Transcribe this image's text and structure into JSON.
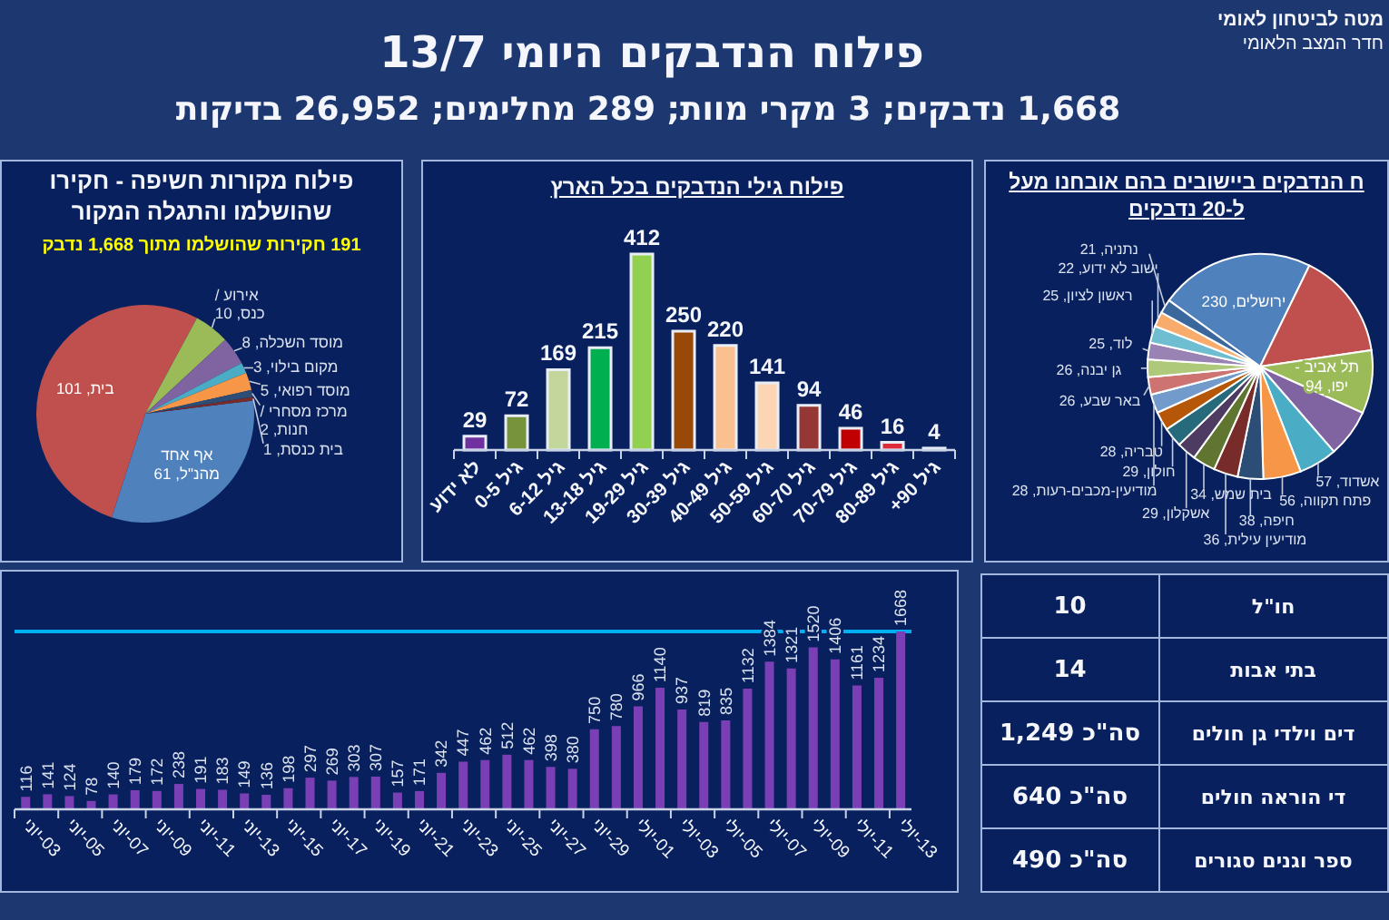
{
  "chart_data": [
    {
      "type": "other",
      "title": "פילוח הנדבקים היומי 13/7",
      "subtitle": "1,668 נדבקים; 3 מקרי מוות; 289 מחלימים; 26,952 בדיקות",
      "annotations": [
        "מטה לביטחון לאומי",
        "חדר המצב הלאומי"
      ]
    },
    {
      "type": "pie",
      "title": "ח הנדבקים ביישובים בהם אובחנו מעל\nל-20 נדבקים",
      "categories": [
        "ירושלים",
        null,
        "תל אביב - יפו",
        null,
        "אשדוד",
        "פתח תקווה",
        "חיפה",
        "מודיעין עילית",
        "בית שמש",
        "אשקלון",
        "חולון",
        "טבריה",
        "מודיעין-מכבים-רעות",
        "באר שבע",
        "גן יבנה",
        "לוד",
        "ראשון לציון",
        "ישוב לא ידוע",
        "נתניה"
      ],
      "values": [
        230,
        160,
        94,
        71,
        57,
        56,
        38,
        36,
        34,
        29,
        29,
        28,
        28,
        26,
        26,
        25,
        25,
        22,
        21
      ],
      "value_labels": [
        "230",
        null,
        "94",
        null,
        "57",
        "56",
        "38",
        "36",
        "34",
        "29",
        "29",
        "28",
        "28",
        "26",
        "26",
        "25",
        "25",
        "22",
        "21"
      ],
      "colors": [
        "#4f81bd",
        "#c0504d",
        "#9bbb59",
        "#8064a2",
        "#4bacc6",
        "#f79646",
        "#2c4d75",
        "#772c2a",
        "#5f7530",
        "#4d3b62",
        "#276a7c",
        "#b65708",
        "#729aca",
        "#cd7371",
        "#afc97a",
        "#9983b5",
        "#6fbdd1",
        "#f9ab6b",
        "#3a679c"
      ]
    },
    {
      "type": "bar",
      "title": "פילוח גילי הנדבקים בכל הארץ",
      "categories": [
        "לא ידוע",
        "גיל 0-5",
        "גיל 6-12",
        "גיל 13-18",
        "גיל 19-29",
        "גיל 30-39",
        "גיל 40-49",
        "גיל 50-59",
        "גיל 60-70",
        "גיל 70-79",
        "גיל 80-89",
        "גיל 90+"
      ],
      "values": [
        29,
        72,
        169,
        215,
        412,
        250,
        220,
        141,
        94,
        46,
        16,
        4
      ],
      "colors": [
        "#7030a0",
        "#77933c",
        "#c3d69b",
        "#00b050",
        "#92d050",
        "#984807",
        "#fac090",
        "#fcd5b5",
        "#953735",
        "#c00000",
        "#dd2d3a",
        "#f2f2f2"
      ],
      "data_labels": true
    },
    {
      "type": "pie",
      "title": "פילוח מקורות חשיפה - חקירו\nשהושלמו והתגלה המקור",
      "subtitle": "191 חקירות שהושלמו מתוך 1,668 נדבק",
      "categories": [
        "אף אחד מהנ\"ל",
        "בית",
        "אירוע / כנס",
        "מוסד השכלה",
        "מקום בילוי",
        "מוסד רפואי",
        "מרכז מסחרי / חנות",
        "בית כנסת"
      ],
      "values": [
        61,
        101,
        10,
        8,
        3,
        5,
        2,
        1
      ],
      "value_labels": [
        "61",
        "101",
        "10",
        "8",
        "3",
        "5",
        "2",
        "1"
      ],
      "colors": [
        "#4f81bd",
        "#c0504d",
        "#9bbb59",
        "#8064a2",
        "#4bacc6",
        "#f79646",
        "#2c4d75",
        "#772c2a"
      ]
    },
    {
      "type": "other",
      "categories": [
        "חו\"ל",
        "בתי אבות",
        "דים וילדי גן חולים",
        "די הוראה חולים",
        "ספר וגנים סגורים"
      ],
      "value_labels": [
        "10",
        "14",
        "סה\"כ 1,249",
        "סה\"כ 640",
        "סה\"כ 490"
      ]
    },
    {
      "type": "bar",
      "categories": [
        "03-יוני",
        null,
        "05-יוני",
        null,
        "07-יוני",
        null,
        "09-יוני",
        null,
        "11-יוני",
        null,
        "13-יוני",
        null,
        "15-יוני",
        null,
        "17-יוני",
        null,
        "19-יוני",
        null,
        "21-יוני",
        null,
        "23-יוני",
        null,
        "25-יוני",
        null,
        "27-יוני",
        null,
        "29-יוני",
        null,
        "01-יולי",
        null,
        "03-יולי",
        null,
        "05-יולי",
        null,
        "07-יולי",
        null,
        "09-יולי",
        null,
        "11-יולי",
        null,
        "13-יולי"
      ],
      "values": [
        116,
        141,
        124,
        78,
        140,
        179,
        172,
        238,
        191,
        183,
        149,
        136,
        198,
        297,
        269,
        303,
        307,
        157,
        171,
        342,
        447,
        462,
        512,
        462,
        398,
        380,
        750,
        780,
        966,
        1140,
        937,
        819,
        835,
        1132,
        1384,
        1321,
        1520,
        1406,
        1161,
        1234,
        1668
      ],
      "color": "#7b3fb5",
      "data_labels": true,
      "ref_lines": [
        {
          "axis": "y",
          "value": 1668,
          "color": "#00b0f0"
        }
      ]
    }
  ]
}
